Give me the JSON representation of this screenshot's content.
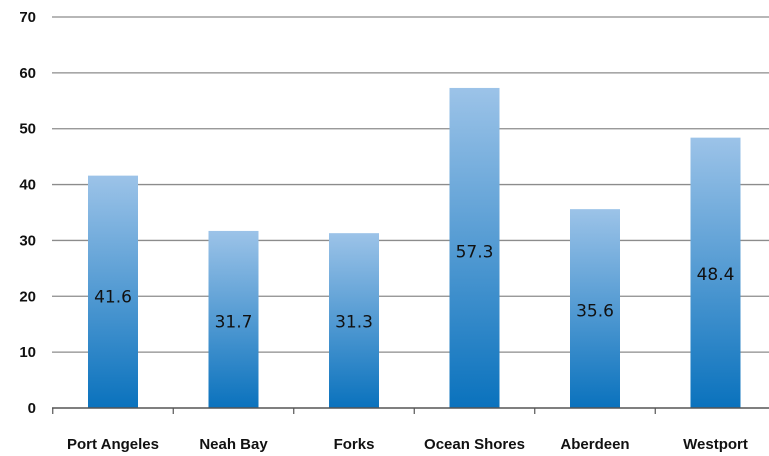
{
  "chart_data": {
    "type": "bar",
    "categories": [
      "Port Angeles",
      "Neah Bay",
      "Forks",
      "Ocean Shores",
      "Aberdeen",
      "Westport"
    ],
    "values": [
      41.6,
      31.7,
      31.3,
      57.3,
      35.6,
      48.4
    ],
    "data_labels": [
      "41.6",
      "31.7",
      "31.3",
      "57.3",
      "35.6",
      "48.4"
    ],
    "data_label_value_positions": [
      20,
      15.5,
      15.5,
      28,
      17.5,
      24
    ],
    "title": "",
    "xlabel": "",
    "ylabel": "",
    "ylim": [
      0,
      70
    ],
    "y_ticks": [
      "0",
      "10",
      "20",
      "30",
      "40",
      "50",
      "60",
      "70"
    ],
    "grid": true,
    "legend": "none",
    "bar_color_top": "#9cc3e8",
    "bar_color_bottom": "#0a72bd"
  }
}
